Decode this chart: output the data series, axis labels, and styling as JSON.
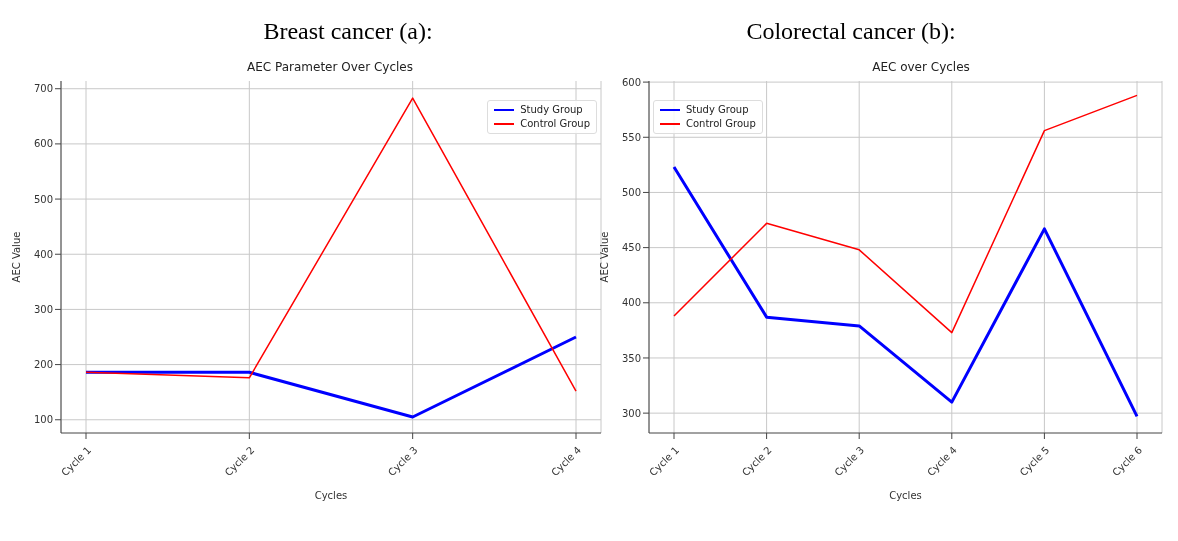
{
  "chart_data": [
    {
      "type": "line",
      "title": "Breast cancer (a):",
      "subtitle": "AEC Parameter Over Cycles",
      "xlabel": "Cycles",
      "ylabel": "AEC Value",
      "categories": [
        "Cycle 1",
        "Cycle 2",
        "Cycle 3",
        "Cycle 4"
      ],
      "series": [
        {
          "name": "Study Group",
          "color": "#0000ff",
          "values": [
            186,
            186,
            105,
            250
          ]
        },
        {
          "name": "Control Group",
          "color": "#ff0000",
          "values": [
            186,
            176,
            683,
            152
          ]
        }
      ],
      "ylim": [
        76,
        714
      ],
      "yticks": [
        100,
        200,
        300,
        400,
        500,
        600,
        700
      ],
      "grid": true,
      "legend": "top right"
    },
    {
      "type": "line",
      "title": "Colorectal cancer (b):",
      "subtitle": "AEC over Cycles",
      "xlabel": "Cycles",
      "ylabel": "AEC Value",
      "categories": [
        "Cycle 1",
        "Cycle 2",
        "Cycle 3",
        "Cycle 4",
        "Cycle 5",
        "Cycle 6"
      ],
      "series": [
        {
          "name": "Study Group",
          "color": "#0000ff",
          "values": [
            523,
            387,
            379,
            310,
            467,
            297
          ]
        },
        {
          "name": "Control Group",
          "color": "#ff0000",
          "values": [
            388,
            472,
            448,
            373,
            556,
            588
          ]
        }
      ],
      "ylim": [
        282,
        601
      ],
      "yticks": [
        300,
        350,
        400,
        450,
        500,
        550,
        600
      ],
      "grid": true,
      "legend": "top left"
    }
  ]
}
